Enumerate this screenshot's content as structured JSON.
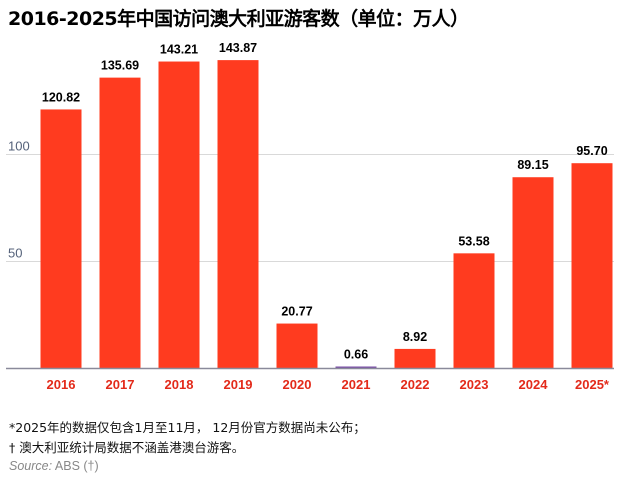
{
  "title": "2016-2025年中国访问澳大利亚游客数（单位：万人）",
  "notes": [
    "*2025年的数据仅包含1月至11月， 12月份官方数据尚未公布；",
    "† 澳大利亚统计局数据不涵盖港澳台游客。"
  ],
  "source": {
    "label": "Source:",
    "text": "ABS (†)"
  },
  "colors": {
    "bar": "#ff3b1f",
    "x_tick": "#e32a1a",
    "y_tick": "#55627a"
  },
  "chart_data": {
    "type": "bar",
    "title": "2016-2025年中国访问澳大利亚游客数（单位：万人）",
    "categories": [
      "2016",
      "2017",
      "2018",
      "2019",
      "2020",
      "2021",
      "2022",
      "2023",
      "2024",
      "2025*"
    ],
    "values": [
      120.82,
      135.69,
      143.21,
      143.87,
      20.77,
      0.66,
      8.92,
      53.58,
      89.15,
      95.7
    ],
    "data_labels": [
      "120.82",
      "135.69",
      "143.21",
      "143.87",
      "20.77",
      "0.66",
      "8.92",
      "53.58",
      "89.15",
      "95.70"
    ],
    "y_ticks": [
      "50",
      "100"
    ],
    "ylim": [
      0,
      150
    ],
    "grid": true,
    "legend": "none",
    "xlabel": "",
    "ylabel": ""
  }
}
